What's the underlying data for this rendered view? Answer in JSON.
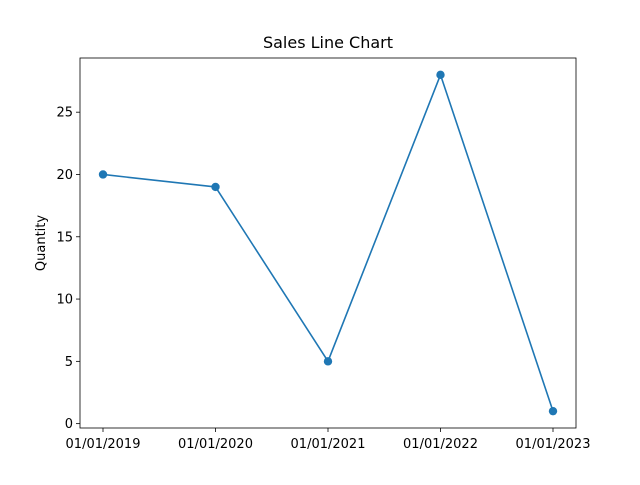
{
  "chart_data": {
    "type": "line",
    "title": "Sales Line Chart",
    "xlabel": "",
    "ylabel": "Quantity",
    "x": [
      "01/01/2019",
      "01/01/2020",
      "01/01/2021",
      "01/01/2022",
      "01/01/2023"
    ],
    "series": [
      {
        "values": [
          20,
          19,
          5,
          28,
          1
        ]
      }
    ],
    "yticks": [
      0,
      5,
      10,
      15,
      20,
      25
    ],
    "ylim": [
      -0.35,
      29.35
    ],
    "grid": false,
    "legend": "none",
    "color": "#1f77b4",
    "marker": "circle"
  }
}
